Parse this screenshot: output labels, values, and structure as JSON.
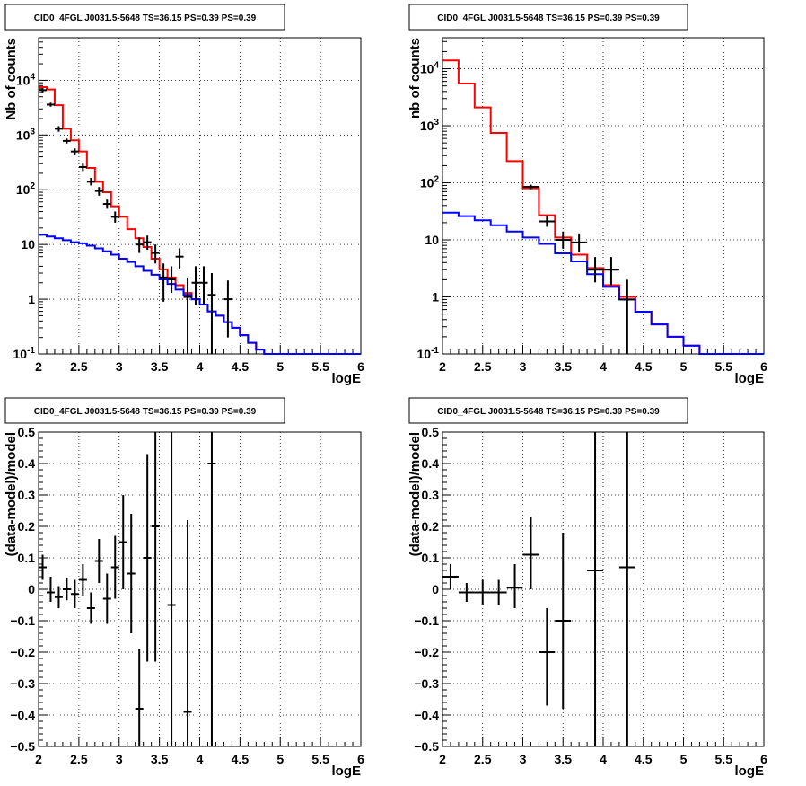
{
  "chart_data": [
    {
      "type": "line",
      "title": "CID0_4FGL J0031.5-5648 TS=36.15 PS=0.39 PS=0.39",
      "xlabel": "logE",
      "ylabel": "Nb of counts",
      "xlim": [
        2,
        6
      ],
      "ylim": [
        0.1,
        60000
      ],
      "yscale": "log",
      "grid": true,
      "x_ticks": [
        "2",
        "2.5",
        "3",
        "3.5",
        "4",
        "4.5",
        "5",
        "5.5",
        "6"
      ],
      "y_ticks": [
        "10^-1",
        "1",
        "10",
        "10^2",
        "10^3",
        "10^4"
      ],
      "bin_edges": [
        2,
        2.1,
        2.2,
        2.3,
        2.4,
        2.5,
        2.6,
        2.7,
        2.8,
        2.9,
        3,
        3.1,
        3.2,
        3.3,
        3.4,
        3.5,
        3.6,
        3.7,
        3.8,
        3.9,
        4,
        4.1,
        4.2,
        4.3,
        4.4,
        4.5,
        4.6,
        4.7,
        4.8,
        4.9,
        5,
        5.1,
        5.2,
        5.3,
        5.4,
        5.5,
        5.6,
        5.7,
        5.8,
        5.9,
        6
      ],
      "series": [
        {
          "role": "total-model",
          "color": "#ff0000",
          "values": [
            7500,
            6800,
            3500,
            1300,
            800,
            500,
            250,
            140,
            90,
            50,
            32,
            19,
            13,
            9,
            5.5,
            3.5,
            2.5,
            1.8,
            1.3,
            1.0,
            0.8,
            0.6,
            0.5,
            0.38,
            0.3,
            0.22,
            0.16,
            0.12,
            0.1,
            0.1,
            0.1,
            0.1,
            0.1,
            0.1,
            0.1,
            0.1,
            0.1,
            0.1,
            0.1,
            0.1
          ]
        },
        {
          "role": "background-model",
          "color": "#0000ff",
          "values": [
            15,
            14,
            13,
            12,
            11,
            10.5,
            9.5,
            8.5,
            7.5,
            6.5,
            5.5,
            4.8,
            4.0,
            3.3,
            2.8,
            2.3,
            1.9,
            1.5,
            1.2,
            1.0,
            0.8,
            0.6,
            0.5,
            0.38,
            0.3,
            0.22,
            0.16,
            0.12,
            0.1,
            0.1,
            0.1,
            0.1,
            0.1,
            0.1,
            0.1,
            0.1,
            0.1,
            0.1,
            0.1,
            0.1
          ]
        },
        {
          "role": "data",
          "color": "#000000",
          "points": [
            [
              2.05,
              6600,
              6000,
              7200
            ],
            [
              2.15,
              3600,
              3300,
              3900
            ],
            [
              2.25,
              1300,
              1150,
              1450
            ],
            [
              2.35,
              780,
              700,
              860
            ],
            [
              2.45,
              500,
              430,
              570
            ],
            [
              2.55,
              260,
              220,
              300
            ],
            [
              2.65,
              140,
              120,
              165
            ],
            [
              2.75,
              95,
              78,
              112
            ],
            [
              2.85,
              55,
              45,
              66
            ],
            [
              2.95,
              32,
              25,
              40
            ],
            [
              3.25,
              10,
              7,
              13.5
            ],
            [
              3.35,
              11,
              8,
              14.5
            ],
            [
              3.45,
              7,
              4.5,
              10
            ],
            [
              3.55,
              2.5,
              0.9,
              4.5
            ],
            [
              3.65,
              2.3,
              1.3,
              4
            ],
            [
              3.75,
              6,
              3.5,
              8.5
            ],
            [
              3.85,
              1.1,
              0.1,
              2.5
            ],
            [
              3.95,
              2,
              0.8,
              4
            ],
            [
              4.05,
              2,
              0.8,
              4
            ],
            [
              4.15,
              1.2,
              0.1,
              3
            ],
            [
              4.35,
              1,
              0.2,
              2.2
            ]
          ]
        }
      ]
    },
    {
      "type": "line",
      "title": "CID0_4FGL J0031.5-5648 TS=36.15 PS=0.39 PS=0.39",
      "xlabel": "logE",
      "ylabel": "nb of counts",
      "xlim": [
        2,
        6
      ],
      "ylim": [
        0.1,
        35000
      ],
      "yscale": "log",
      "grid": true,
      "x_ticks": [
        "2",
        "2.5",
        "3",
        "3.5",
        "4",
        "4.5",
        "5",
        "5.5",
        "6"
      ],
      "y_ticks": [
        "10^-1",
        "1",
        "10",
        "10^2",
        "10^3",
        "10^4"
      ],
      "bin_edges": [
        2,
        2.2,
        2.4,
        2.6,
        2.8,
        3,
        3.2,
        3.4,
        3.6,
        3.8,
        4,
        4.2,
        4.4,
        4.6,
        4.8,
        5,
        5.2,
        5.4,
        5.6,
        5.8,
        6
      ],
      "series": [
        {
          "role": "total-model",
          "color": "#ff0000",
          "values": [
            14000,
            5500,
            2100,
            750,
            240,
            80,
            27,
            11,
            5.5,
            3.2,
            1.6,
            1.0,
            0.55,
            0.33,
            0.2,
            0.14,
            0.1,
            0.1,
            0.1,
            0.1
          ]
        },
        {
          "role": "background-model",
          "color": "#0000ff",
          "values": [
            30,
            26,
            22,
            18,
            14,
            11,
            8.5,
            5.8,
            4.2,
            2.5,
            1.5,
            0.9,
            0.55,
            0.33,
            0.2,
            0.14,
            0.1,
            0.1,
            0.1,
            0.1
          ]
        },
        {
          "role": "data",
          "color": "#000000",
          "points": [
            [
              3.1,
              85,
              77,
              93
            ],
            [
              3.3,
              21,
              17,
              26
            ],
            [
              3.5,
              10,
              7,
              14
            ],
            [
              3.7,
              9,
              6,
              13
            ],
            [
              3.9,
              3,
              1.8,
              5
            ],
            [
              4.1,
              3,
              1.6,
              5
            ],
            [
              4.3,
              0.9,
              0.1,
              2
            ]
          ]
        }
      ]
    },
    {
      "type": "scatter",
      "title": "CID0_4FGL J0031.5-5648 TS=36.15 PS=0.39 PS=0.39",
      "xlabel": "logE",
      "ylabel": "(data-model)/model",
      "xlim": [
        2,
        6
      ],
      "ylim": [
        -0.5,
        0.5
      ],
      "grid": true,
      "x_ticks": [
        "2",
        "2.5",
        "3",
        "3.5",
        "4",
        "4.5",
        "5",
        "5.5",
        "6"
      ],
      "y_ticks": [
        "-0.5",
        "-0.4",
        "-0.3",
        "-0.2",
        "-0.1",
        "0",
        "0.1",
        "0.2",
        "0.3",
        "0.4",
        "0.5"
      ],
      "series": [
        {
          "role": "residuals",
          "color": "#000000",
          "xerr": 0.05,
          "points": [
            [
              2.05,
              0.07,
              0.03,
              0.11
            ],
            [
              2.15,
              -0.01,
              -0.04,
              0.04
            ],
            [
              2.25,
              -0.025,
              -0.06,
              0.01
            ],
            [
              2.35,
              0.0,
              -0.035,
              0.035
            ],
            [
              2.45,
              -0.015,
              -0.06,
              0.03
            ],
            [
              2.55,
              0.03,
              -0.02,
              0.08
            ],
            [
              2.65,
              -0.06,
              -0.11,
              -0.01
            ],
            [
              2.75,
              0.09,
              0.02,
              0.16
            ],
            [
              2.85,
              -0.03,
              -0.11,
              0.05
            ],
            [
              2.95,
              0.07,
              -0.03,
              0.17
            ],
            [
              3.05,
              0.15,
              0.0,
              0.3
            ],
            [
              3.15,
              0.05,
              -0.14,
              0.24
            ],
            [
              3.25,
              -0.38,
              -0.5,
              -0.19
            ],
            [
              3.35,
              0.1,
              -0.23,
              0.43
            ],
            [
              3.45,
              0.2,
              -0.23,
              0.5
            ],
            [
              3.65,
              -0.05,
              -0.5,
              0.5
            ],
            [
              3.85,
              -0.39,
              -0.5,
              0.22
            ],
            [
              4.15,
              0.4,
              -0.5,
              0.5
            ]
          ]
        }
      ]
    },
    {
      "type": "scatter",
      "title": "CID0_4FGL J0031.5-5648 TS=36.15 PS=0.39 PS=0.39",
      "xlabel": "logE",
      "ylabel": "(data-model)/model",
      "xlim": [
        2,
        6
      ],
      "ylim": [
        -0.5,
        0.5
      ],
      "grid": true,
      "x_ticks": [
        "2",
        "2.5",
        "3",
        "3.5",
        "4",
        "4.5",
        "5",
        "5.5",
        "6"
      ],
      "y_ticks": [
        "-0.5",
        "-0.4",
        "-0.3",
        "-0.2",
        "-0.1",
        "0",
        "0.1",
        "0.2",
        "0.3",
        "0.4",
        "0.5"
      ],
      "series": [
        {
          "role": "residuals",
          "color": "#000000",
          "xerr": 0.1,
          "points": [
            [
              2.1,
              0.04,
              0.0,
              0.08
            ],
            [
              2.3,
              -0.01,
              -0.04,
              0.02
            ],
            [
              2.5,
              -0.01,
              -0.05,
              0.03
            ],
            [
              2.7,
              -0.01,
              -0.05,
              0.03
            ],
            [
              2.9,
              0.005,
              -0.06,
              0.08
            ],
            [
              3.1,
              0.11,
              0.0,
              0.23
            ],
            [
              3.3,
              -0.2,
              -0.37,
              -0.06
            ],
            [
              3.5,
              -0.1,
              -0.38,
              0.18
            ],
            [
              3.9,
              0.06,
              -0.5,
              0.5
            ],
            [
              4.3,
              0.07,
              -0.5,
              0.5
            ]
          ]
        }
      ]
    }
  ]
}
